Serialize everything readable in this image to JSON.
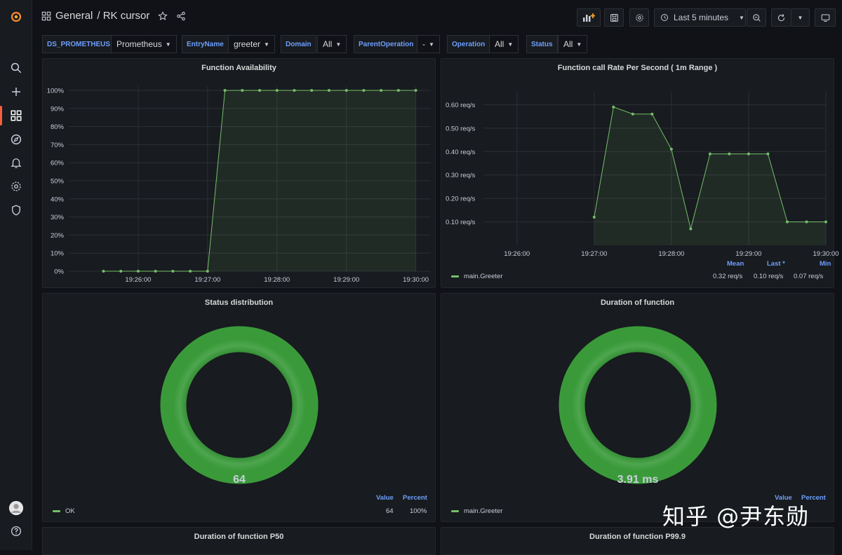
{
  "nav": {
    "icons": [
      "search-icon",
      "plus-icon",
      "dashboards-icon",
      "explore-icon",
      "alerting-icon",
      "configuration-icon",
      "shield-icon",
      "avatar",
      "help-icon"
    ]
  },
  "header": {
    "folder": "General",
    "title": "/ RK cursor",
    "time_range": "Last 5 minutes"
  },
  "variables": [
    {
      "label": "DS_PROMETHEUS",
      "value": "Prometheus"
    },
    {
      "label": "EntryName",
      "value": "greeter"
    },
    {
      "label": "Domain",
      "value": "All"
    },
    {
      "label": "ParentOperation",
      "value": "-"
    },
    {
      "label": "Operation",
      "value": "All"
    },
    {
      "label": "Status",
      "value": "All"
    }
  ],
  "colors": {
    "series": "#73bf69",
    "accent": "#6e9fff",
    "brand": "#f55f3e"
  },
  "panels": {
    "availability": {
      "title": "Function Availability",
      "chart_data": {
        "type": "line",
        "x": [
          "19:25:30",
          "19:25:45",
          "19:26:00",
          "19:26:15",
          "19:26:30",
          "19:26:45",
          "19:27:00",
          "19:27:15",
          "19:27:30",
          "19:27:45",
          "19:28:00",
          "19:28:15",
          "19:28:30",
          "19:28:45",
          "19:29:00",
          "19:29:15",
          "19:29:30",
          "19:29:45",
          "19:30:00"
        ],
        "values": [
          0,
          0,
          0,
          0,
          0,
          0,
          0,
          100,
          100,
          100,
          100,
          100,
          100,
          100,
          100,
          100,
          100,
          100,
          100
        ],
        "ylim": [
          0,
          100
        ],
        "yticks": [
          "0%",
          "10%",
          "20%",
          "30%",
          "40%",
          "50%",
          "60%",
          "70%",
          "80%",
          "90%",
          "100%"
        ],
        "xticks": [
          "19:26:00",
          "19:27:00",
          "19:28:00",
          "19:29:00",
          "19:30:00"
        ],
        "grid": true
      }
    },
    "rate": {
      "title": "Function call Rate Per Second ( 1m Range )",
      "chart_data": {
        "type": "line",
        "x": [
          "19:27:00",
          "19:27:15",
          "19:27:30",
          "19:27:45",
          "19:28:00",
          "19:28:15",
          "19:28:30",
          "19:28:45",
          "19:29:00",
          "19:29:15",
          "19:29:30",
          "19:29:45",
          "19:30:00"
        ],
        "values": [
          0.12,
          0.59,
          0.56,
          0.56,
          0.41,
          0.07,
          0.39,
          0.39,
          0.39,
          0.39,
          0.1,
          0.1,
          0.1
        ],
        "ylim": [
          0.0,
          0.64
        ],
        "yticks": [
          "0.10 req/s",
          "0.20 req/s",
          "0.30 req/s",
          "0.40 req/s",
          "0.50 req/s",
          "0.60 req/s"
        ],
        "xticks": [
          "19:26:00",
          "19:27:00",
          "19:28:00",
          "19:29:00",
          "19:30:00"
        ],
        "grid": true,
        "legend": {
          "series": "main.Greeter",
          "headers": [
            "Mean",
            "Last *",
            "Min"
          ],
          "values": [
            "0.32 req/s",
            "0.10 req/s",
            "0.07 req/s"
          ]
        }
      }
    },
    "status": {
      "title": "Status distribution",
      "center_value": "64",
      "chart_data": {
        "type": "pie",
        "labels": [
          "OK"
        ],
        "values": [
          64
        ]
      },
      "legend": {
        "label": "OK",
        "value_header": "Value",
        "percent_header": "Percent",
        "value": "64",
        "percent": "100%"
      }
    },
    "duration": {
      "title": "Duration of function",
      "center_value": "3.91 ms",
      "chart_data": {
        "type": "pie",
        "labels": [
          "main.Greeter"
        ],
        "values": [
          3.91
        ]
      },
      "legend": {
        "label": "main.Greeter",
        "value_header": "Value",
        "percent_header": "Percent"
      }
    },
    "p50": {
      "title": "Duration of function P50"
    },
    "p999": {
      "title": "Duration of function P99.9"
    }
  },
  "watermark": "知乎 @尹东勋"
}
